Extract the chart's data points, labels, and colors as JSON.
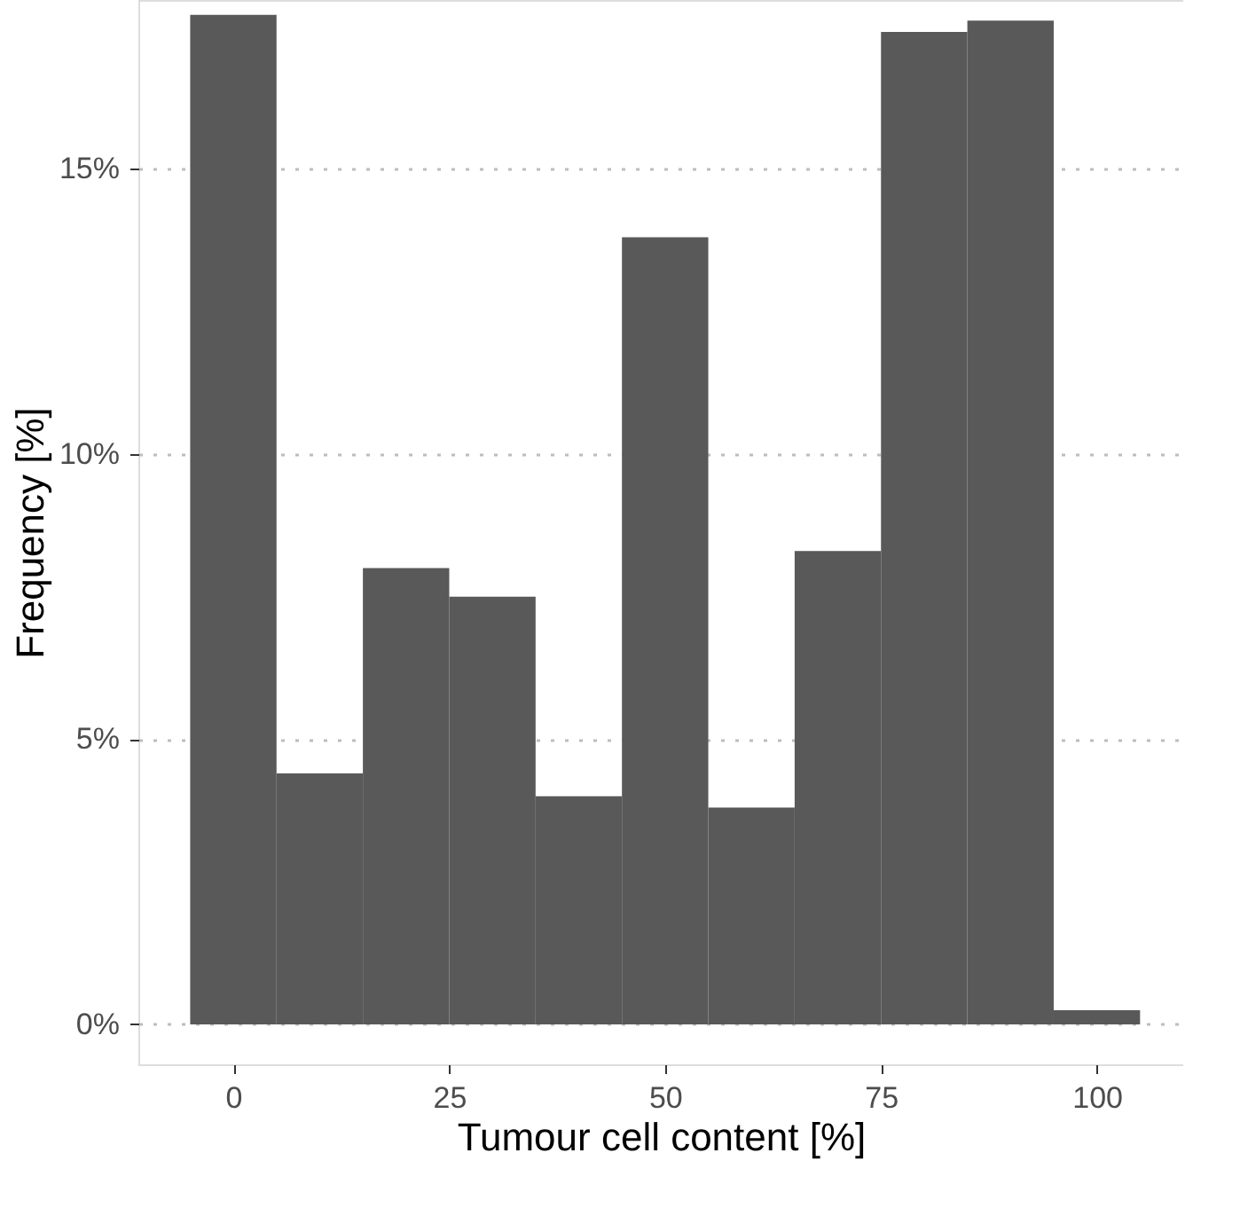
{
  "chart_data": {
    "type": "histogram",
    "bins": [
      -5,
      5,
      15,
      25,
      35,
      45,
      55,
      65,
      75,
      85,
      95,
      105
    ],
    "values": [
      17.7,
      4.4,
      8.0,
      7.5,
      4.0,
      13.8,
      3.8,
      8.3,
      17.4,
      17.6,
      0.25
    ],
    "color": "#595959",
    "xlabel": "Tumour cell content [%]",
    "ylabel": "Frequency [%]",
    "xlim": [
      -11,
      110
    ],
    "xticks": [
      0,
      25,
      50,
      75,
      100
    ],
    "ylim": [
      -0.7,
      17.96
    ],
    "yticks": [
      {
        "value": 0,
        "label": "0%"
      },
      {
        "value": 5,
        "label": "5%"
      },
      {
        "value": 10,
        "label": "10%"
      },
      {
        "value": 15,
        "label": "15%"
      }
    ],
    "grid": "y"
  }
}
